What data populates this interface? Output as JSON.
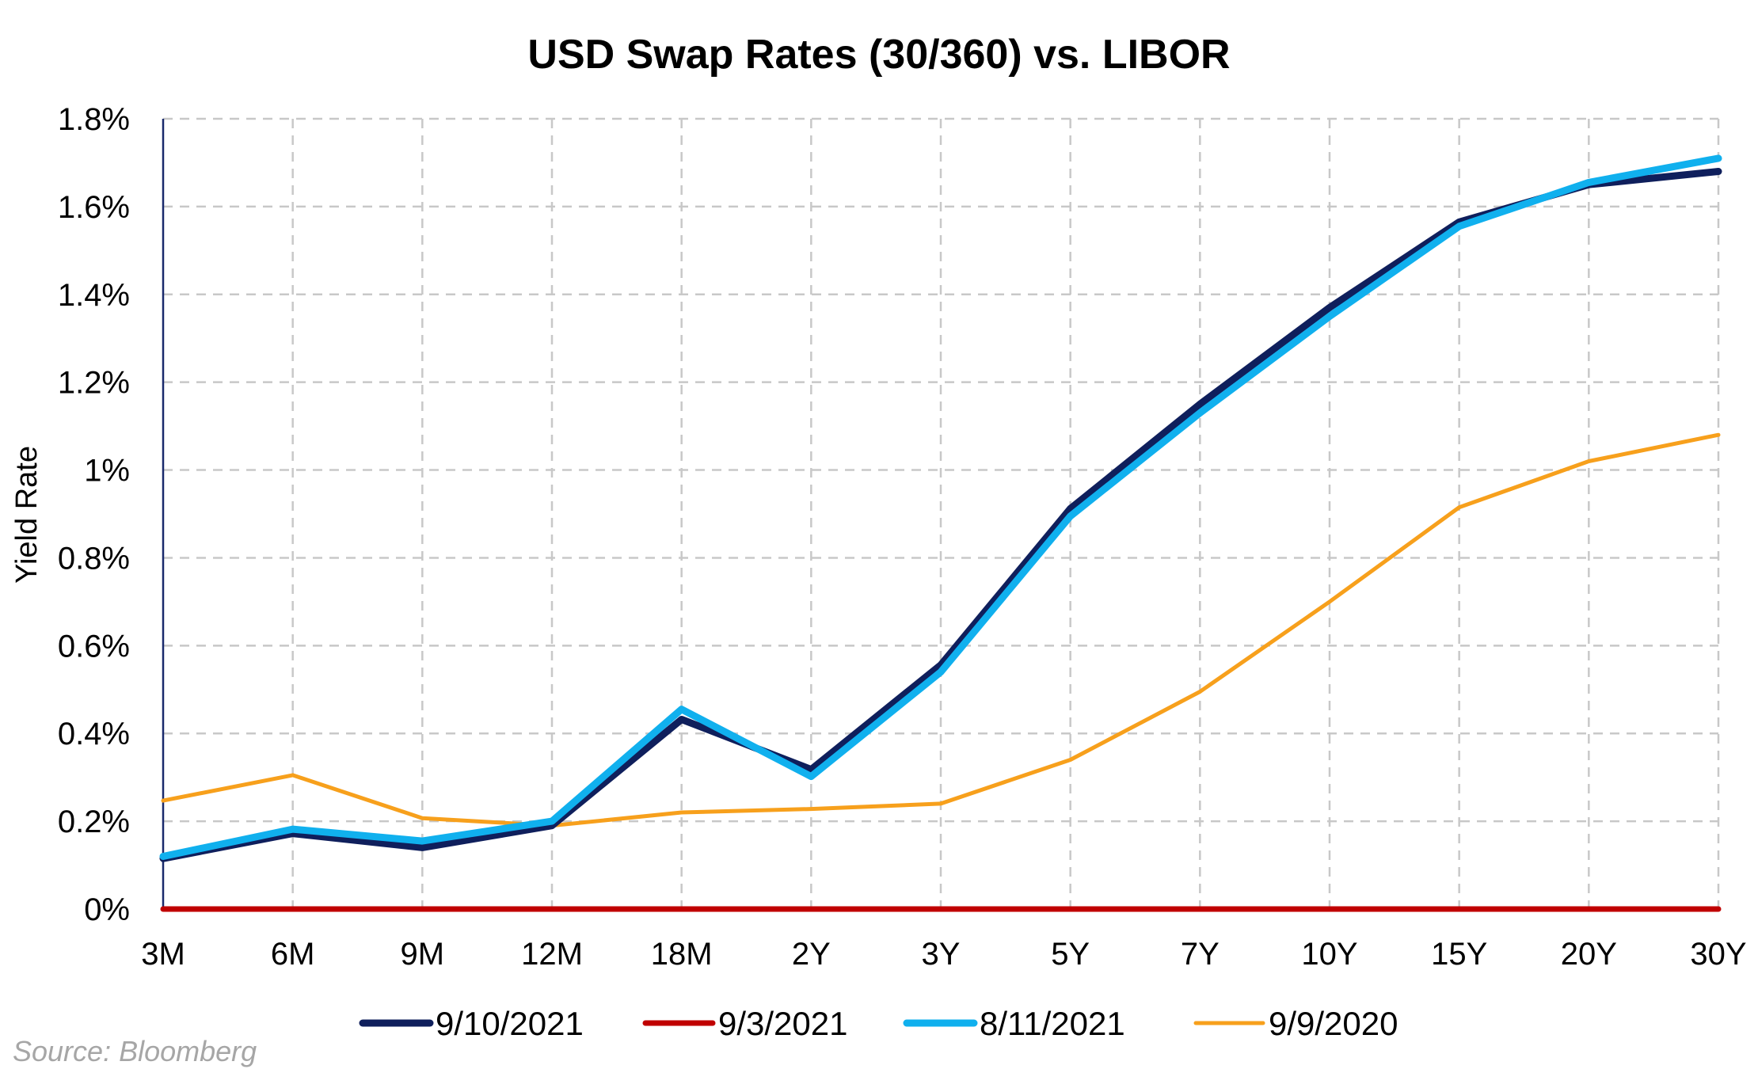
{
  "chart_data": {
    "type": "line",
    "title": "USD Swap Rates (30/360) vs. LIBOR",
    "ylabel": "Yield Rate",
    "xlabel": "",
    "categories": [
      "3M",
      "6M",
      "9M",
      "12M",
      "18M",
      "2Y",
      "3Y",
      "5Y",
      "7Y",
      "10Y",
      "15Y",
      "20Y",
      "30Y"
    ],
    "yticks": [
      "0%",
      "0.2%",
      "0.4%",
      "0.6%",
      "0.8%",
      "1%",
      "1.2%",
      "1.4%",
      "1.6%",
      "1.8%"
    ],
    "ytick_values": [
      0,
      0.2,
      0.4,
      0.6,
      0.8,
      1.0,
      1.2,
      1.4,
      1.6,
      1.8
    ],
    "ylim": [
      0,
      1.8
    ],
    "grid": true,
    "legend_position": "bottom",
    "series": [
      {
        "name": "9/10/2021",
        "color": "#0f1f5c",
        "values": [
          0.115,
          0.172,
          0.14,
          0.19,
          0.432,
          0.318,
          0.556,
          0.912,
          1.15,
          1.37,
          1.565,
          1.65,
          1.68
        ]
      },
      {
        "name": "9/3/2021",
        "color": "#c00000",
        "values": [
          0,
          0,
          0,
          0,
          0,
          0,
          0,
          0,
          0,
          0,
          0,
          0,
          0
        ]
      },
      {
        "name": "8/11/2021",
        "color": "#10b0ee",
        "values": [
          0.12,
          0.182,
          0.155,
          0.2,
          0.455,
          0.302,
          0.54,
          0.895,
          1.13,
          1.35,
          1.555,
          1.655,
          1.71
        ]
      },
      {
        "name": "9/9/2020",
        "color": "#f7a01c",
        "values": [
          0.247,
          0.305,
          0.207,
          0.19,
          0.22,
          0.228,
          0.24,
          0.34,
          0.495,
          0.7,
          0.915,
          1.02,
          1.08
        ]
      }
    ]
  },
  "source_text": "Source: Bloomberg"
}
